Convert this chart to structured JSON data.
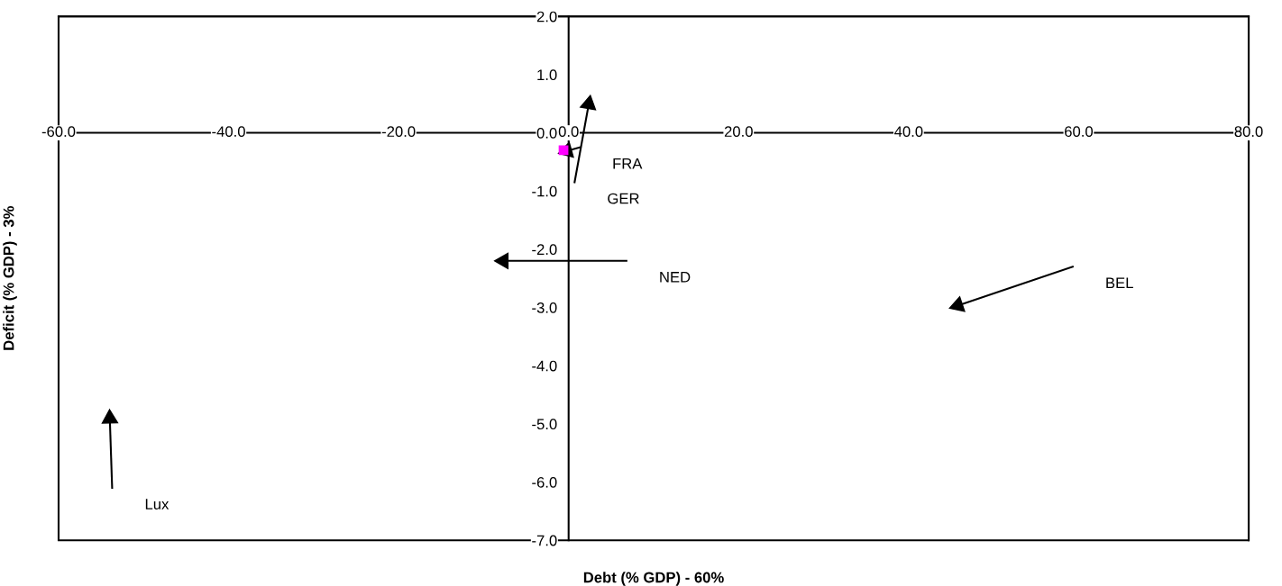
{
  "chart_data": {
    "type": "line",
    "xlabel": "Debt (% GDP) - 60%",
    "ylabel": "Deficit (% GDP) - 3%",
    "xlim": [
      -60,
      80
    ],
    "ylim": [
      -7,
      2
    ],
    "xticks": [
      {
        "value": -60,
        "label": "-60.0"
      },
      {
        "value": -40,
        "label": "-40.0"
      },
      {
        "value": -20,
        "label": "-20.0"
      },
      {
        "value": 0,
        "label": "0.0"
      },
      {
        "value": 20,
        "label": "20.0"
      },
      {
        "value": 40,
        "label": "40.0"
      },
      {
        "value": 60,
        "label": "60.0"
      },
      {
        "value": 80,
        "label": "80.0"
      }
    ],
    "yticks": [
      {
        "value": 2,
        "label": "2.0"
      },
      {
        "value": 1,
        "label": "1.0"
      },
      {
        "value": 0,
        "label": "0.0"
      },
      {
        "value": -1,
        "label": "-1.0"
      },
      {
        "value": -2,
        "label": "-2.0"
      },
      {
        "value": -3,
        "label": "-3.0"
      },
      {
        "value": -4,
        "label": "-4.0"
      },
      {
        "value": -5,
        "label": "-5.0"
      },
      {
        "value": -6,
        "label": "-6.0"
      },
      {
        "value": -7,
        "label": "-7.0"
      }
    ],
    "grid": false,
    "legend": false,
    "line_style": "solid",
    "series": [
      {
        "name": "FRA",
        "color": "#000000",
        "x": [
          1.3,
          -0.9
        ],
        "values": [
          -0.25,
          -0.34
        ]
      },
      {
        "name": "GER",
        "color": "#000000",
        "x": [
          0.7,
          2.5
        ],
        "values": [
          -0.85,
          0.6
        ]
      },
      {
        "name": "NED",
        "color": "#000000",
        "x": [
          6.8,
          -8.4
        ],
        "values": [
          -2.2,
          -2.2
        ]
      },
      {
        "name": "BEL",
        "color": "#000000",
        "x": [
          59.3,
          45.1
        ],
        "values": [
          -2.3,
          -3.0
        ]
      },
      {
        "name": "Lux",
        "color": "#000000",
        "x": [
          -53.7,
          -54.0
        ],
        "values": [
          -6.1,
          -4.8
        ]
      },
      {
        "type": "scatter",
        "marker": "square",
        "color": "#ff00ff",
        "x": [
          -0.6
        ],
        "values": [
          -0.3
        ]
      }
    ]
  }
}
